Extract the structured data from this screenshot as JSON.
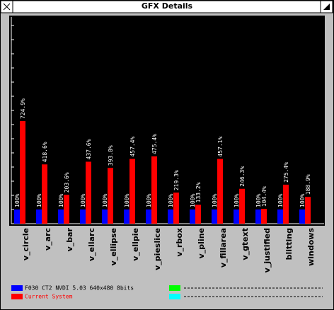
{
  "window_title": "GFX Details",
  "chart_data": {
    "type": "bar",
    "categories": [
      "v_circle",
      "v_arc",
      "v_bar",
      "v_ellarc",
      "v_ellipse",
      "v_ellpie",
      "v_pieslice",
      "v_rbox",
      "v_pline",
      "v_fillarea",
      "v_gtext",
      "v_justified",
      "blitting",
      "windows"
    ],
    "series": [
      {
        "name": "F030 CT2 NVDI 5.03 640x480 8bits",
        "color": "#0000ff",
        "values": [
          100,
          100,
          100,
          100,
          100,
          100,
          100,
          100,
          100,
          100,
          100,
          100,
          100,
          100
        ],
        "value_labels": [
          "100%",
          "100%",
          "100%",
          "100%",
          "100%",
          "100%",
          "100%",
          "100%",
          "100%",
          "100%",
          "100%",
          "100%",
          "100%",
          "100%"
        ]
      },
      {
        "name": "Current System",
        "color": "#ff0000",
        "values": [
          724.9,
          418.6,
          203.6,
          437.6,
          393.8,
          457.4,
          475.4,
          219.3,
          133.2,
          457.1,
          246.3,
          104.4,
          275.4,
          188.9
        ],
        "value_labels": [
          "724.9%",
          "418.6%",
          "203.6%",
          "437.6%",
          "393.8%",
          "457.4%",
          "475.4%",
          "219.3%",
          "133.2%",
          "457.1%",
          "246.3%",
          "104.4%",
          "275.4%",
          "188.9%"
        ]
      }
    ],
    "ylim": [
      0,
      1450
    ],
    "yticks": [
      100,
      200,
      300,
      400,
      500,
      600,
      700,
      800,
      900,
      1000,
      1100,
      1200,
      1300,
      1400
    ]
  }
}
